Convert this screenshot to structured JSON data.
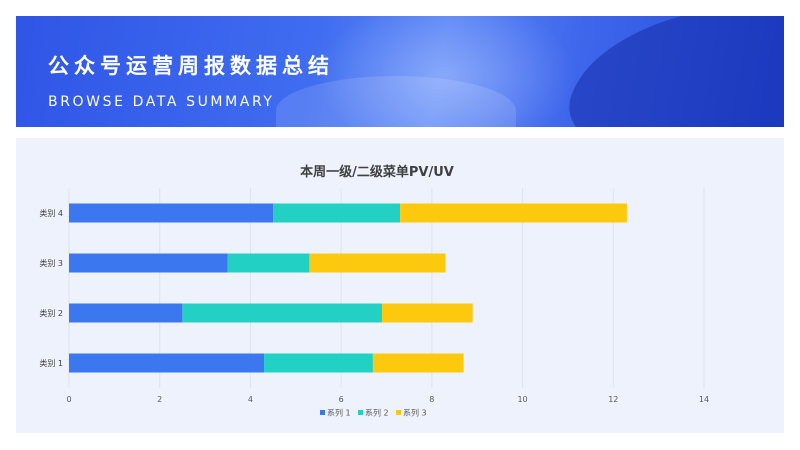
{
  "banner": {
    "title": "公众号运营周报数据总结",
    "subtitle": "BROWSE DATA SUMMARY"
  },
  "colors": {
    "banner_blue": "#2f55e6",
    "panel_bg": "#eef2fd",
    "series": [
      "#3b78f0",
      "#22d1c3",
      "#fdc90f"
    ]
  },
  "chart_data": {
    "type": "bar",
    "orientation": "horizontal",
    "stacked": true,
    "title": "本周一级/二级菜单PV/UV",
    "categories": [
      "类别 1",
      "类别 2",
      "类别 3",
      "类别 4"
    ],
    "series": [
      {
        "name": "系列 1",
        "values": [
          4.3,
          2.5,
          3.5,
          4.5
        ]
      },
      {
        "name": "系列 2",
        "values": [
          2.4,
          4.4,
          1.8,
          2.8
        ]
      },
      {
        "name": "系列 3",
        "values": [
          2.0,
          2.0,
          3.0,
          5.0
        ]
      }
    ],
    "xlim": [
      0,
      14
    ],
    "xticks": [
      "0",
      "2",
      "4",
      "6",
      "8",
      "10",
      "12",
      "14"
    ],
    "grid": true,
    "legend": "bottom"
  }
}
